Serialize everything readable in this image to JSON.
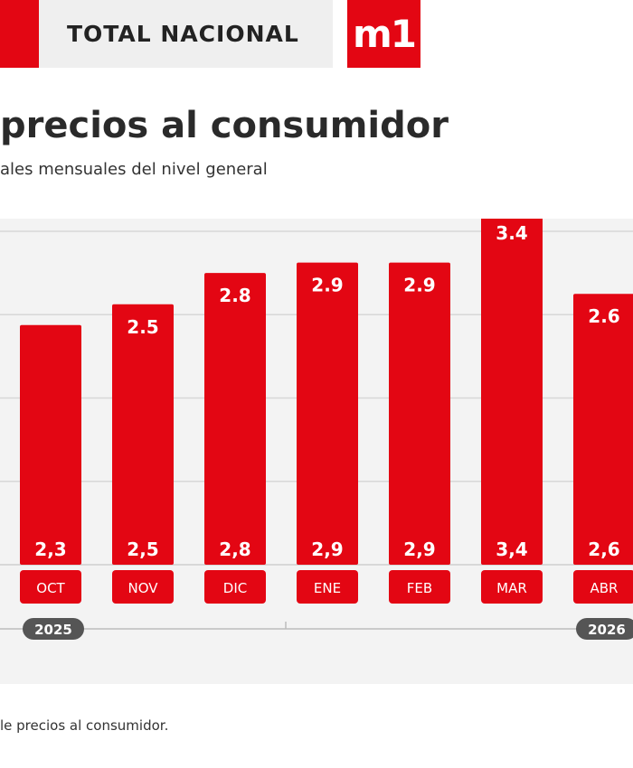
{
  "header": {
    "section_label": "TOTAL NACIONAL",
    "logo_text": "m1"
  },
  "title": "precios al consumidor",
  "subtitle": "ales mensuales del nivel general",
  "source": "le precios al consumidor.",
  "colors": {
    "accent": "#e30613",
    "panel": "#f3f3f3",
    "year_badge": "#555555"
  },
  "chart_data": {
    "type": "bar",
    "categories": [
      "OCT",
      "NOV",
      "DIC",
      "ENE",
      "FEB",
      "MAR",
      "ABR"
    ],
    "values": [
      2.3,
      2.5,
      2.8,
      2.9,
      2.9,
      3.4,
      2.6
    ],
    "top_labels": [
      "",
      "2.5",
      "2.8",
      "2.9",
      "2.9",
      "3.4",
      "2.6"
    ],
    "bottom_labels": [
      "2,3",
      "2,5",
      "2,8",
      "2,9",
      "2,9",
      "3,4",
      "2,6"
    ],
    "years": [
      "2025",
      "2026"
    ],
    "ylim": [
      0,
      4.0
    ],
    "grid": true
  }
}
